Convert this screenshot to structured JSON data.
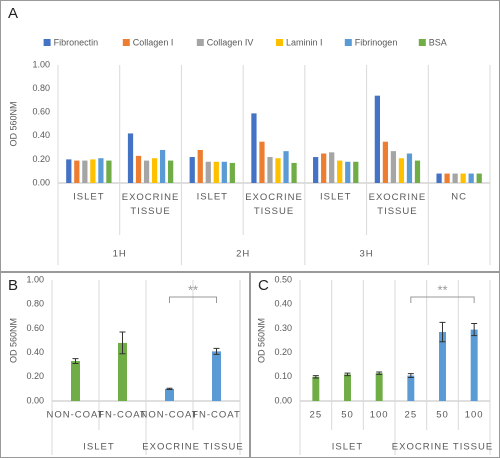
{
  "chart_data": [
    {
      "type": "grouped-bar",
      "panel": "A",
      "ylabel": "OD 560NM",
      "categories": [
        "ISLET",
        "EXOCRINE TISSUE",
        "ISLET",
        "EXOCRINE TISSUE",
        "ISLET",
        "EXOCRINE TISSUE",
        "NC"
      ],
      "groups": [
        "1H",
        "1H",
        "2H",
        "2H",
        "3H",
        "3H",
        null
      ],
      "series": [
        {
          "name": "Fibronectin",
          "color": "#4472c4",
          "values": [
            0.2,
            0.42,
            0.22,
            0.59,
            0.22,
            0.74,
            0.08
          ]
        },
        {
          "name": "Collagen I",
          "color": "#ed7d31",
          "values": [
            0.19,
            0.23,
            0.28,
            0.35,
            0.25,
            0.35,
            0.08
          ]
        },
        {
          "name": "Collagen IV",
          "color": "#a5a5a5",
          "values": [
            0.19,
            0.19,
            0.18,
            0.22,
            0.26,
            0.27,
            0.08
          ]
        },
        {
          "name": "Laminin I",
          "color": "#ffc000",
          "values": [
            0.2,
            0.21,
            0.18,
            0.21,
            0.19,
            0.21,
            0.08
          ]
        },
        {
          "name": "Fibrinogen",
          "color": "#5b9bd5",
          "values": [
            0.21,
            0.28,
            0.18,
            0.27,
            0.18,
            0.25,
            0.08
          ]
        },
        {
          "name": "BSA",
          "color": "#70ad47",
          "values": [
            0.19,
            0.19,
            0.17,
            0.17,
            0.18,
            0.19,
            0.08
          ]
        }
      ],
      "ylim": [
        0,
        1
      ],
      "yticks": [
        {
          "value": 0,
          "label": "0.00"
        },
        {
          "value": 0.2,
          "label": "0.20"
        },
        {
          "value": 0.4,
          "label": "0.40"
        },
        {
          "value": 0.6,
          "label": "0.60"
        },
        {
          "value": 0.8,
          "label": "0.80"
        },
        {
          "value": 1,
          "label": "1.00"
        }
      ],
      "grid": false,
      "legend": "top"
    },
    {
      "type": "bar",
      "panel": "B",
      "ylabel": "OD 560NM",
      "categories": [
        "NON-COAT",
        "FN-COAT",
        "NON-COAT",
        "FN-COAT"
      ],
      "groups": [
        "ISLET",
        "ISLET",
        "EXOCRINE TISSUE",
        "EXOCRINE TISSUE"
      ],
      "values": [
        0.33,
        0.48,
        0.1,
        0.41
      ],
      "errors": [
        0.02,
        0.09,
        0.005,
        0.025
      ],
      "colors": [
        "#70ad47",
        "#70ad47",
        "#5b9bd5",
        "#5b9bd5"
      ],
      "significance": "**",
      "ylim": [
        0,
        1
      ],
      "yticks": [
        {
          "value": 0,
          "label": "0.00"
        },
        {
          "value": 0.2,
          "label": "0.20"
        },
        {
          "value": 0.4,
          "label": "0.40"
        },
        {
          "value": 0.6,
          "label": "0.60"
        },
        {
          "value": 0.8,
          "label": "0.80"
        },
        {
          "value": 1,
          "label": "1.00"
        }
      ],
      "grid": false
    },
    {
      "type": "bar",
      "panel": "C",
      "ylabel": "OD 560NM",
      "categories": [
        "25",
        "50",
        "100",
        "25",
        "50",
        "100"
      ],
      "groups": [
        "ISLET",
        "ISLET",
        "ISLET",
        "EXOCRINE TISSUE",
        "EXOCRINE TISSUE",
        "EXOCRINE TISSUE"
      ],
      "values": [
        0.1,
        0.11,
        0.115,
        0.105,
        0.285,
        0.295
      ],
      "errors": [
        0.005,
        0.005,
        0.005,
        0.008,
        0.04,
        0.025
      ],
      "colors": [
        "#70ad47",
        "#70ad47",
        "#70ad47",
        "#5b9bd5",
        "#5b9bd5",
        "#5b9bd5"
      ],
      "significance": "**",
      "ylim": [
        0,
        0.5
      ],
      "yticks": [
        {
          "value": 0,
          "label": "0.00"
        },
        {
          "value": 0.1,
          "label": "0.10"
        },
        {
          "value": 0.2,
          "label": "0.20"
        },
        {
          "value": 0.3,
          "label": "0.30"
        },
        {
          "value": 0.4,
          "label": "0.40"
        },
        {
          "value": 0.5,
          "label": "0.50"
        }
      ],
      "grid": false
    }
  ]
}
